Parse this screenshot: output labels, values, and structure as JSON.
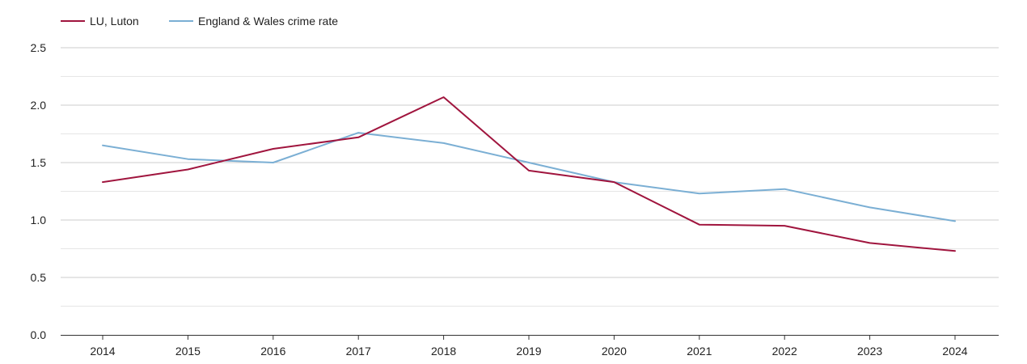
{
  "chart_data": {
    "type": "line",
    "title": "",
    "xlabel": "",
    "ylabel": "",
    "categories": [
      "2014",
      "2015",
      "2016",
      "2017",
      "2018",
      "2019",
      "2020",
      "2021",
      "2022",
      "2023",
      "2024"
    ],
    "ylim": [
      0,
      2.5
    ],
    "yticks": [
      "0.0",
      "0.5",
      "1.0",
      "1.5",
      "2.0",
      "2.5"
    ],
    "grid": true,
    "legend_position": "top-left",
    "series": [
      {
        "name": "LU, Luton",
        "color": "#a0153e",
        "values": [
          1.33,
          1.44,
          1.62,
          1.72,
          2.07,
          1.43,
          1.33,
          0.96,
          0.95,
          0.8,
          0.73
        ]
      },
      {
        "name": "England & Wales crime rate",
        "color": "#7bafd4",
        "values": [
          1.65,
          1.53,
          1.5,
          1.76,
          1.67,
          1.5,
          1.33,
          1.23,
          1.27,
          1.11,
          0.99
        ]
      }
    ]
  }
}
